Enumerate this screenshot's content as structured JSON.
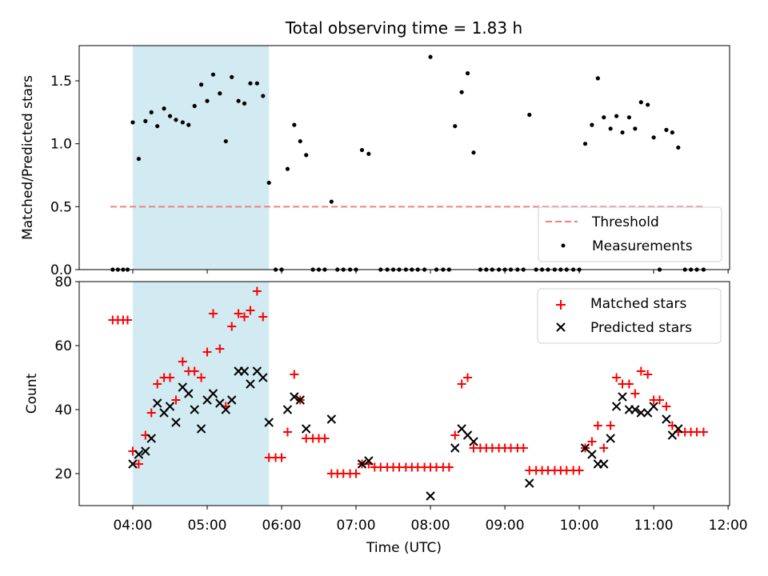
{
  "chart_data": [
    {
      "type": "scatter",
      "title": "Total observing time = 1.83 h",
      "ylabel": "Matched/Predicted stars",
      "xlabel": "",
      "xlim": [
        3.28,
        12.02
      ],
      "ylim": [
        0,
        1.78
      ],
      "x_unit": "hours UTC",
      "grid": false,
      "legend_position": "lower-right",
      "shaded_interval": [
        4.0,
        5.83
      ],
      "shade_color": "#add8e6",
      "threshold": {
        "name": "Threshold",
        "y": 0.5,
        "x_range": [
          3.7,
          11.68
        ],
        "color": "#f08080",
        "style": "dashed"
      },
      "yticks": [
        "0.0",
        "0.5",
        "1.0",
        "1.5"
      ],
      "ytick_values": [
        0,
        0.5,
        1.0,
        1.5
      ],
      "series": [
        {
          "name": "Measurements",
          "marker": "dot",
          "color": "#000000",
          "x": [
            3.73,
            3.8,
            3.87,
            3.93,
            4.0,
            4.08,
            4.17,
            4.25,
            4.33,
            4.42,
            4.5,
            4.58,
            4.67,
            4.75,
            4.83,
            4.92,
            5.0,
            5.08,
            5.17,
            5.25,
            5.33,
            5.42,
            5.5,
            5.58,
            5.67,
            5.75,
            5.83,
            5.92,
            6.0,
            6.08,
            6.17,
            6.25,
            6.33,
            6.42,
            6.5,
            6.58,
            6.67,
            6.75,
            6.83,
            6.92,
            7.0,
            7.08,
            7.17,
            7.33,
            7.42,
            7.5,
            7.58,
            7.67,
            7.75,
            7.83,
            7.92,
            8.0,
            8.08,
            8.17,
            8.25,
            8.33,
            8.42,
            8.5,
            8.58,
            8.67,
            8.75,
            8.83,
            8.92,
            9.0,
            9.08,
            9.17,
            9.25,
            9.33,
            9.42,
            9.5,
            9.58,
            9.67,
            9.75,
            9.83,
            9.92,
            10.0,
            10.08,
            10.17,
            10.25,
            10.33,
            10.42,
            10.5,
            10.58,
            10.67,
            10.75,
            10.83,
            10.92,
            11.0,
            11.08,
            11.17,
            11.25,
            11.33,
            11.42,
            11.5,
            11.58,
            11.67
          ],
          "y": [
            0,
            0,
            0,
            0,
            1.17,
            0.88,
            1.18,
            1.25,
            1.14,
            1.28,
            1.22,
            1.19,
            1.17,
            1.15,
            1.3,
            1.47,
            1.34,
            1.55,
            1.4,
            1.02,
            1.53,
            1.34,
            1.32,
            1.48,
            1.48,
            1.38,
            0.69,
            0,
            0,
            0.8,
            1.15,
            1.02,
            0.91,
            0,
            0,
            0,
            0.54,
            0,
            0,
            0,
            0,
            0.95,
            0.92,
            0,
            0,
            0,
            0,
            0,
            0,
            0,
            0,
            1.69,
            0,
            0,
            0,
            1.14,
            1.41,
            1.56,
            0.93,
            0,
            0,
            0,
            0,
            0,
            0,
            0,
            0,
            1.23,
            0,
            0,
            0,
            0,
            0,
            0,
            0,
            0,
            1.0,
            1.15,
            1.52,
            1.21,
            1.12,
            1.22,
            1.09,
            1.21,
            1.12,
            1.33,
            1.31,
            1.05,
            0,
            1.11,
            1.09,
            0.97,
            0,
            0,
            0,
            0
          ]
        }
      ]
    },
    {
      "type": "scatter",
      "title": "",
      "ylabel": "Count",
      "xlabel": "Time (UTC)",
      "xlim": [
        3.28,
        12.02
      ],
      "ylim": [
        10,
        80
      ],
      "grid": false,
      "legend_position": "top-right",
      "shaded_interval": [
        4.0,
        5.83
      ],
      "xticks": [
        "04:00",
        "05:00",
        "06:00",
        "07:00",
        "08:00",
        "09:00",
        "10:00",
        "11:00",
        "12:00"
      ],
      "xtick_values": [
        4,
        5,
        6,
        7,
        8,
        9,
        10,
        11,
        12
      ],
      "yticks": [
        "20",
        "40",
        "60",
        "80"
      ],
      "ytick_values": [
        20,
        40,
        60,
        80
      ],
      "series": [
        {
          "name": "Matched stars",
          "marker": "plus",
          "color": "#ff0000",
          "x": [
            3.73,
            3.8,
            3.87,
            3.93,
            4.0,
            4.08,
            4.17,
            4.25,
            4.33,
            4.42,
            4.5,
            4.58,
            4.67,
            4.75,
            4.83,
            4.92,
            5.0,
            5.08,
            5.17,
            5.25,
            5.33,
            5.42,
            5.5,
            5.58,
            5.67,
            5.75,
            5.83,
            5.92,
            6.0,
            6.08,
            6.17,
            6.25,
            6.33,
            6.42,
            6.5,
            6.58,
            6.67,
            6.75,
            6.83,
            6.92,
            7.0,
            7.08,
            7.17,
            7.25,
            7.33,
            7.42,
            7.5,
            7.58,
            7.67,
            7.75,
            7.83,
            7.92,
            8.0,
            8.08,
            8.17,
            8.25,
            8.33,
            8.42,
            8.5,
            8.58,
            8.67,
            8.75,
            8.83,
            8.92,
            9.0,
            9.08,
            9.17,
            9.25,
            9.33,
            9.42,
            9.5,
            9.58,
            9.67,
            9.75,
            9.83,
            9.92,
            10.0,
            10.08,
            10.17,
            10.25,
            10.33,
            10.42,
            10.5,
            10.58,
            10.67,
            10.75,
            10.83,
            10.92,
            11.0,
            11.08,
            11.17,
            11.25,
            11.33,
            11.42,
            11.5,
            11.58,
            11.67
          ],
          "y": [
            68,
            68,
            68,
            68,
            27,
            23,
            32,
            39,
            48,
            50,
            50,
            43,
            55,
            52,
            52,
            50,
            58,
            70,
            59,
            41,
            66,
            70,
            69,
            71,
            77,
            69,
            25,
            25,
            25,
            33,
            51,
            43,
            31,
            31,
            31,
            31,
            20,
            20,
            20,
            20,
            20,
            23,
            23,
            22,
            22,
            22,
            22,
            22,
            22,
            22,
            22,
            22,
            22,
            22,
            22,
            22,
            32,
            48,
            50,
            28,
            28,
            28,
            28,
            28,
            28,
            28,
            28,
            28,
            21,
            21,
            21,
            21,
            21,
            21,
            21,
            21,
            21,
            28,
            30,
            35,
            28,
            35,
            50,
            48,
            48,
            45,
            52,
            51,
            43,
            43,
            41,
            35,
            33,
            33,
            33,
            33,
            33
          ]
        },
        {
          "name": "Predicted stars",
          "marker": "x",
          "color": "#000000",
          "x": [
            4.0,
            4.08,
            4.17,
            4.25,
            4.33,
            4.42,
            4.5,
            4.58,
            4.67,
            4.75,
            4.83,
            4.92,
            5.0,
            5.08,
            5.17,
            5.25,
            5.33,
            5.42,
            5.5,
            5.58,
            5.67,
            5.75,
            5.83,
            6.08,
            6.17,
            6.25,
            6.33,
            6.67,
            7.08,
            7.17,
            8.0,
            8.33,
            8.42,
            8.5,
            8.58,
            9.33,
            10.08,
            10.17,
            10.25,
            10.33,
            10.42,
            10.5,
            10.58,
            10.67,
            10.75,
            10.83,
            10.92,
            11.0,
            11.17,
            11.25,
            11.33
          ],
          "y": [
            23,
            26,
            27,
            31,
            42,
            39,
            41,
            36,
            47,
            45,
            40,
            34,
            43,
            45,
            42,
            40,
            43,
            52,
            52,
            48,
            52,
            50,
            36,
            40,
            44,
            43,
            34,
            37,
            23,
            24,
            13,
            28,
            34,
            32,
            30,
            17,
            28,
            26,
            23,
            23,
            31,
            41,
            44,
            40,
            40,
            39,
            39,
            41,
            37,
            32,
            34
          ]
        }
      ]
    }
  ]
}
